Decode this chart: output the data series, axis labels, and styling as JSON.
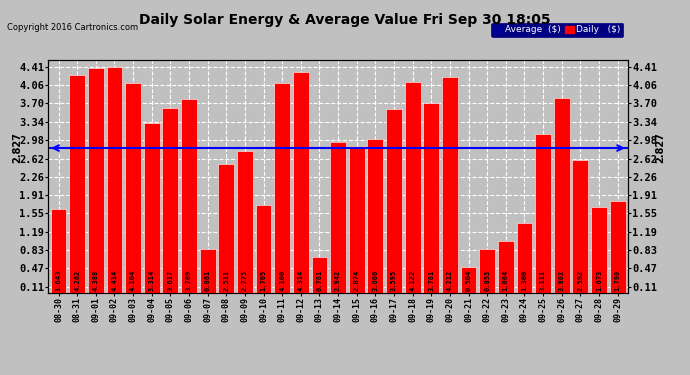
{
  "title": "Daily Solar Energy & Average Value Fri Sep 30 18:05",
  "copyright": "Copyright 2016 Cartronics.com",
  "average_value": 2.827,
  "bar_color": "#FF0000",
  "average_line_color": "#0000FF",
  "background_color": "#C0C0C0",
  "plot_bg_color": "#C0C0C0",
  "categories": [
    "08-30",
    "08-31",
    "09-01",
    "09-02",
    "09-03",
    "09-04",
    "09-05",
    "09-06",
    "09-07",
    "09-08",
    "09-09",
    "09-10",
    "09-11",
    "09-12",
    "09-13",
    "09-14",
    "09-15",
    "09-16",
    "09-17",
    "09-18",
    "09-19",
    "09-20",
    "09-21",
    "09-22",
    "09-23",
    "09-24",
    "09-25",
    "09-26",
    "09-27",
    "09-28",
    "09-29"
  ],
  "values": [
    1.643,
    4.262,
    4.388,
    4.414,
    4.104,
    3.314,
    3.617,
    3.789,
    0.861,
    2.511,
    2.775,
    1.705,
    4.1,
    4.314,
    0.701,
    2.942,
    2.874,
    3.006,
    3.595,
    4.122,
    3.701,
    4.212,
    0.504,
    0.853,
    1.004,
    1.36,
    3.111,
    3.802,
    2.592,
    1.673,
    1.79
  ],
  "yticks": [
    0.11,
    0.47,
    0.83,
    1.19,
    1.55,
    1.91,
    2.26,
    2.62,
    2.98,
    3.34,
    3.7,
    4.06,
    4.41
  ],
  "ymin": 0.0,
  "ymax": 4.55,
  "legend_avg_color": "#000099",
  "legend_daily_color": "#FF0000",
  "legend_avg_text": "Average  ($)",
  "legend_daily_text": "Daily   ($)"
}
